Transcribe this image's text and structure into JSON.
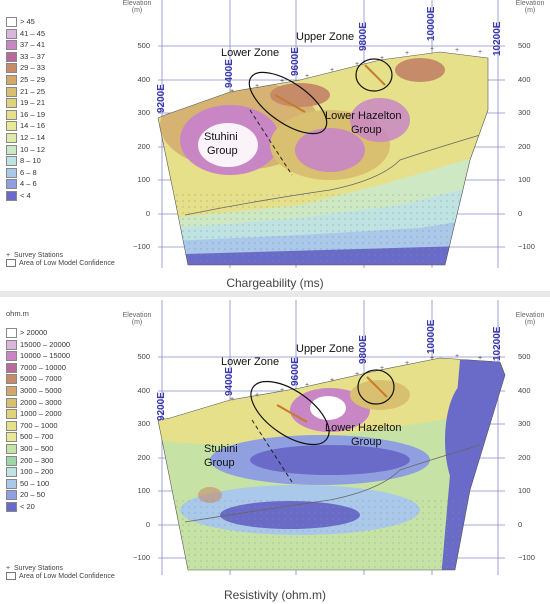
{
  "top": {
    "unit": "",
    "legend": [
      "> 45",
      "41 – 45",
      "37 – 41",
      "33 – 37",
      "29 – 33",
      "25 – 29",
      "21 – 25",
      "19 – 21",
      "16 – 19",
      "14 – 16",
      "12 – 14",
      "10 – 12",
      "8 – 10",
      "6 – 8",
      "4 – 6",
      "< 4"
    ],
    "legend_colors": [
      "#ffffff",
      "#d9b6dc",
      "#c886c4",
      "#b86a9a",
      "#c68c6a",
      "#d2a86c",
      "#d9c070",
      "#e0d37a",
      "#e6e08a",
      "#e8e896",
      "#dfe9a8",
      "#cfe8c4",
      "#bfe3e3",
      "#a9c8ea",
      "#8f9fe0",
      "#6a6ac8"
    ],
    "title": "Chargeability (ms)",
    "foot_legend": [
      "Survey Stations",
      "Area of Low Model Confidence"
    ],
    "elevation_label": "Elevation",
    "elevation_unit": "(m)",
    "elev_ticks": [
      "500",
      "400",
      "300",
      "200",
      "100",
      "0",
      "−100"
    ],
    "stations": [
      "9200E",
      "9400E",
      "9600E",
      "9800E",
      "10000E",
      "10200E"
    ],
    "labels": {
      "lower_zone": "Lower Zone",
      "upper_zone": "Upper Zone",
      "stuhini": "Stuhini",
      "stuhini2": "Group",
      "hazelton": "Lower Hazelton",
      "hazelton2": "Group"
    }
  },
  "bottom": {
    "unit": "ohm.m",
    "legend": [
      "> 20000",
      "15000 – 20000",
      "10000 – 15000",
      "7000 – 10000",
      "5000 – 7000",
      "3000 – 5000",
      "2000 – 3000",
      "1000 – 2000",
      "700 – 1000",
      "500 – 700",
      "300 – 500",
      "200 – 300",
      "100 – 200",
      "50 – 100",
      "20 – 50",
      "< 20"
    ],
    "legend_colors": [
      "#ffffff",
      "#d9b6dc",
      "#c886c4",
      "#b86a9a",
      "#c68c6a",
      "#d2a86c",
      "#d9c070",
      "#e0d37a",
      "#e6e08a",
      "#e8e896",
      "#c6e2a4",
      "#9ed6a8",
      "#bfe3e3",
      "#a9c8ea",
      "#8f9fe0",
      "#6a6ac8"
    ],
    "title": "Resistivity (ohm.m)",
    "foot_legend": [
      "Survey Stations",
      "Area of Low Model Confidence"
    ],
    "elevation_label": "Elevation",
    "elevation_unit": "(m)",
    "elev_ticks": [
      "500",
      "400",
      "300",
      "200",
      "100",
      "0",
      "−100"
    ],
    "stations": [
      "9200E",
      "9400E",
      "9600E",
      "9800E",
      "10000E",
      "10200E"
    ],
    "labels": {
      "lower_zone": "Lower Zone",
      "upper_zone": "Upper Zone",
      "stuhini": "Stuhini",
      "stuhini2": "Group",
      "hazelton": "Lower Hazelton",
      "hazelton2": "Group"
    }
  }
}
